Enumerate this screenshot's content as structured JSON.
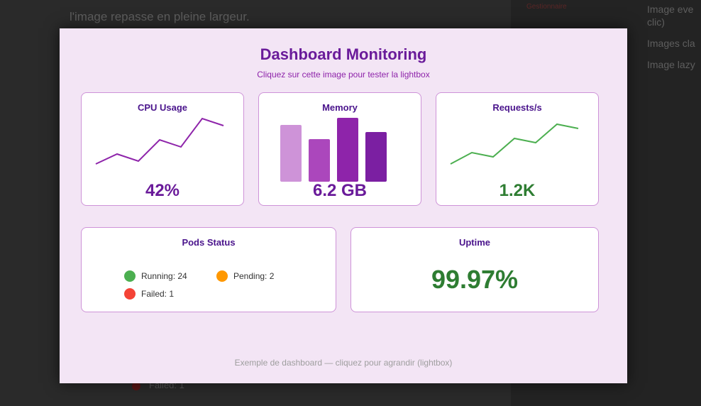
{
  "background": {
    "lines": [
      "l'image repasse en pleine largeur."
    ],
    "side_items": [
      "Image eve",
      "clic)",
      "Images cla",
      "Image lazy"
    ],
    "side_red": "Gestionnaire",
    "dot_label": "Failed: 1"
  },
  "lightbox": {
    "title": "Dashboard Monitoring",
    "subtitle": "Cliquez sur cette image pour tester la lightbox",
    "caption": "Exemple de dashboard — cliquez pour agrandir (lightbox)"
  },
  "cards": {
    "cpu": {
      "title": "CPU Usage",
      "value": "42%",
      "color": "#6a1b9a",
      "line_color": "#8e24aa"
    },
    "memory": {
      "title": "Memory",
      "value": "6.2 GB",
      "color": "#6a1b9a"
    },
    "requests": {
      "title": "Requests/s",
      "value": "1.2K",
      "color": "#2e7d32",
      "line_color": "#4caf50"
    },
    "pods": {
      "title": "Pods Status",
      "items": [
        {
          "label": "Running: 24",
          "color": "#4caf50"
        },
        {
          "label": "Pending: 2",
          "color": "#ff9800"
        },
        {
          "label": "Failed: 1",
          "color": "#f44336"
        }
      ]
    },
    "uptime": {
      "title": "Uptime",
      "value": "99.97%",
      "color": "#2e7d32"
    }
  },
  "chart_data": [
    {
      "type": "line",
      "title": "CPU Usage",
      "x": [
        0,
        1,
        2,
        3,
        4,
        5,
        6
      ],
      "values": [
        10,
        24,
        14,
        44,
        34,
        74,
        64
      ],
      "ylim": [
        0,
        80
      ]
    },
    {
      "type": "bar",
      "title": "Memory",
      "categories": [
        "1",
        "2",
        "3",
        "4"
      ],
      "values": [
        80,
        60,
        90,
        70
      ],
      "colors": [
        "#ce93d8",
        "#ab47bc",
        "#8e24aa",
        "#7b1fa2"
      ],
      "ylim": [
        0,
        90
      ]
    },
    {
      "type": "line",
      "title": "Requests/s",
      "x": [
        0,
        1,
        2,
        3,
        4,
        5,
        6
      ],
      "values": [
        10,
        26,
        20,
        46,
        40,
        66,
        60
      ],
      "ylim": [
        0,
        80
      ]
    }
  ]
}
